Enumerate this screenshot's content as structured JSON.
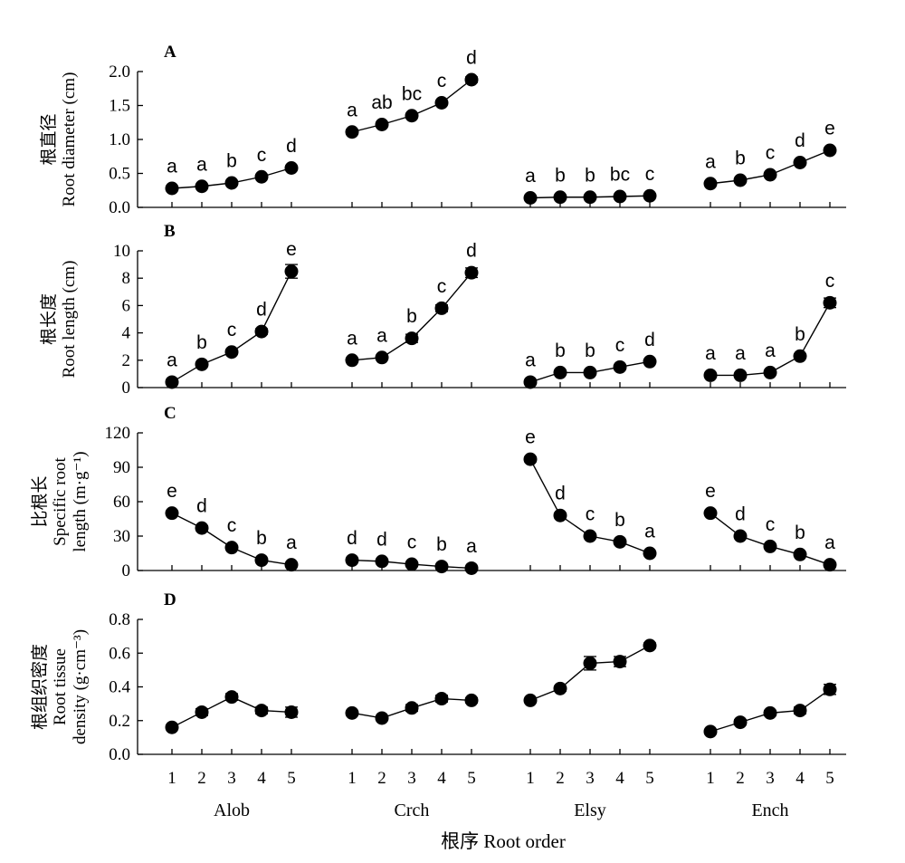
{
  "chart_data": {
    "type": "scatter",
    "x_tick_labels": [
      "1",
      "2",
      "3",
      "4",
      "5"
    ],
    "groups": [
      "Alob",
      "Crch",
      "Elsy",
      "Ench"
    ],
    "xlabel": "根序  Root order",
    "panels": [
      {
        "label": "A",
        "ylabel_lines": [
          "根直径",
          "Root diameter (cm)"
        ],
        "ylim": [
          0,
          2.0
        ],
        "yticks": [
          "0.0",
          "0.5",
          "1.0",
          "1.5",
          "2.0"
        ],
        "tick_values": [
          0,
          0.5,
          1.0,
          1.5,
          2.0
        ],
        "series": [
          {
            "group": "Alob",
            "values": [
              0.28,
              0.31,
              0.36,
              0.45,
              0.58
            ],
            "errors": [
              0.02,
              0.02,
              0.02,
              0.02,
              0.03
            ],
            "letters": [
              "a",
              "a",
              "b",
              "c",
              "d"
            ]
          },
          {
            "group": "Crch",
            "values": [
              1.11,
              1.22,
              1.35,
              1.54,
              1.88
            ],
            "errors": [
              0.03,
              0.03,
              0.03,
              0.03,
              0.04
            ],
            "letters": [
              "a",
              "ab",
              "bc",
              "c",
              "d"
            ]
          },
          {
            "group": "Elsy",
            "values": [
              0.14,
              0.15,
              0.15,
              0.16,
              0.17
            ],
            "errors": [
              0.01,
              0.01,
              0.01,
              0.01,
              0.01
            ],
            "letters": [
              "a",
              "b",
              "b",
              "bc",
              "c"
            ]
          },
          {
            "group": "Ench",
            "values": [
              0.35,
              0.4,
              0.48,
              0.66,
              0.84
            ],
            "errors": [
              0.02,
              0.02,
              0.02,
              0.03,
              0.03
            ],
            "letters": [
              "a",
              "b",
              "c",
              "d",
              "e"
            ]
          }
        ]
      },
      {
        "label": "B",
        "ylabel_lines": [
          "根长度",
          "Root length (cm)"
        ],
        "ylim": [
          0,
          10
        ],
        "yticks": [
          "0",
          "2",
          "4",
          "6",
          "8",
          "10"
        ],
        "tick_values": [
          0,
          2,
          4,
          6,
          8,
          10
        ],
        "series": [
          {
            "group": "Alob",
            "values": [
              0.4,
              1.7,
              2.6,
              4.1,
              8.5
            ],
            "errors": [
              0.05,
              0.1,
              0.15,
              0.2,
              0.5
            ],
            "letters": [
              "a",
              "b",
              "c",
              "d",
              "e"
            ]
          },
          {
            "group": "Crch",
            "values": [
              2.0,
              2.2,
              3.6,
              5.8,
              8.4
            ],
            "errors": [
              0.1,
              0.15,
              0.3,
              0.25,
              0.35
            ],
            "letters": [
              "a",
              "a",
              "b",
              "c",
              "d"
            ]
          },
          {
            "group": "Elsy",
            "values": [
              0.4,
              1.1,
              1.1,
              1.5,
              1.9
            ],
            "errors": [
              0.05,
              0.1,
              0.1,
              0.1,
              0.1
            ],
            "letters": [
              "a",
              "b",
              "b",
              "c",
              "d"
            ]
          },
          {
            "group": "Ench",
            "values": [
              0.9,
              0.9,
              1.1,
              2.3,
              6.2
            ],
            "errors": [
              0.05,
              0.05,
              0.1,
              0.15,
              0.35
            ],
            "letters": [
              "a",
              "a",
              "a",
              "b",
              "c"
            ]
          }
        ]
      },
      {
        "label": "C",
        "ylabel_lines": [
          "比根长",
          "Specific root",
          "length (m·g⁻¹)"
        ],
        "ylim": [
          0,
          120
        ],
        "yticks": [
          "0",
          "30",
          "60",
          "90",
          "120"
        ],
        "tick_values": [
          0,
          30,
          60,
          90,
          120
        ],
        "series": [
          {
            "group": "Alob",
            "values": [
              50,
              37,
              20,
              9,
              5
            ],
            "errors": [
              1.5,
              2.0,
              1.5,
              1.0,
              0.8
            ],
            "letters": [
              "e",
              "d",
              "c",
              "b",
              "a"
            ]
          },
          {
            "group": "Crch",
            "values": [
              9,
              8,
              5.5,
              3.5,
              2
            ],
            "errors": [
              1.0,
              1.0,
              0.8,
              0.6,
              0.4
            ],
            "letters": [
              "d",
              "d",
              "c",
              "b",
              "a"
            ]
          },
          {
            "group": "Elsy",
            "values": [
              97,
              48,
              30,
              25,
              15
            ],
            "errors": [
              2.0,
              2.0,
              1.5,
              1.5,
              1.2
            ],
            "letters": [
              "e",
              "d",
              "c",
              "b",
              "a"
            ]
          },
          {
            "group": "Ench",
            "values": [
              50,
              30,
              21,
              14,
              5
            ],
            "errors": [
              1.5,
              1.5,
              1.2,
              1.0,
              0.6
            ],
            "letters": [
              "e",
              "d",
              "c",
              "b",
              "a"
            ]
          }
        ]
      },
      {
        "label": "D",
        "ylabel_lines": [
          "根组织密度",
          "Root tissue",
          "density (g·cm⁻³)"
        ],
        "ylim": [
          0,
          0.8
        ],
        "yticks": [
          "0.0",
          "0.2",
          "0.4",
          "0.6",
          "0.8"
        ],
        "tick_values": [
          0,
          0.2,
          0.4,
          0.6,
          0.8
        ],
        "series": [
          {
            "group": "Alob",
            "values": [
              0.16,
              0.25,
              0.34,
              0.26,
              0.25
            ],
            "errors": [
              0.01,
              0.02,
              0.02,
              0.02,
              0.03
            ],
            "letters": []
          },
          {
            "group": "Crch",
            "values": [
              0.245,
              0.215,
              0.275,
              0.33,
              0.32
            ],
            "errors": [
              0.01,
              0.01,
              0.02,
              0.02,
              0.015
            ],
            "letters": []
          },
          {
            "group": "Elsy",
            "values": [
              0.32,
              0.39,
              0.54,
              0.55,
              0.645
            ],
            "errors": [
              0.01,
              0.015,
              0.04,
              0.03,
              0.015
            ],
            "letters": []
          },
          {
            "group": "Ench",
            "values": [
              0.135,
              0.19,
              0.245,
              0.26,
              0.385
            ],
            "errors": [
              0.01,
              0.015,
              0.015,
              0.02,
              0.03
            ],
            "letters": []
          }
        ]
      }
    ]
  }
}
